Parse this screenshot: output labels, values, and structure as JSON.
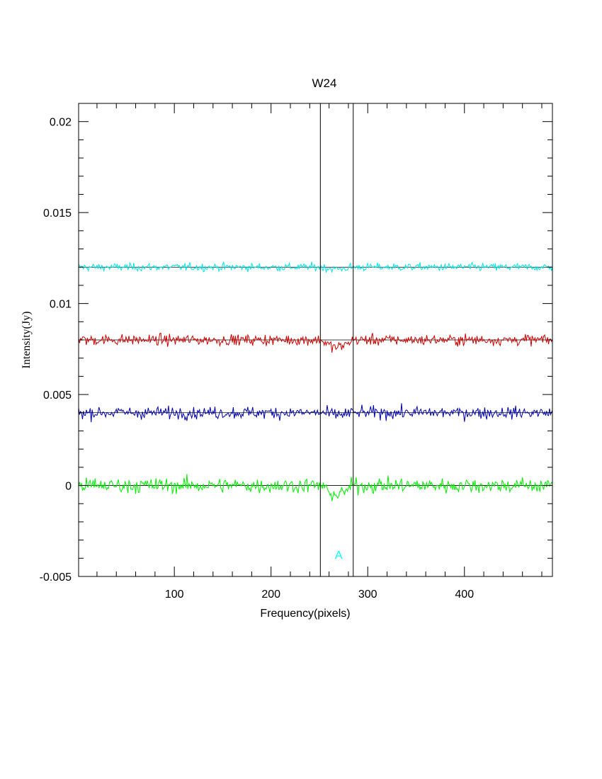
{
  "chart_data": {
    "type": "line",
    "title": "W24",
    "xlabel": "Frequency(pixels)",
    "ylabel": "Intensity(Jy)",
    "xlim": [
      1,
      491
    ],
    "ylim": [
      -0.005,
      0.021
    ],
    "x_ticks": [
      100,
      200,
      300,
      400
    ],
    "x_tick_labels": [
      "100",
      "200",
      "300",
      "400"
    ],
    "y_ticks": [
      -0.005,
      0,
      0.005,
      0.01,
      0.015,
      0.02
    ],
    "y_tick_labels": [
      "-0.005",
      "0",
      "0.005",
      "0.01",
      "0.015",
      "0.02"
    ],
    "grid": false,
    "legend": "none",
    "vertical_lines": [
      251,
      285
    ],
    "annotations": [
      {
        "text": "A",
        "x": 270,
        "y": -0.0038,
        "color": "#00ffff"
      }
    ],
    "series": [
      {
        "color": "#00e6e6",
        "baseline": 0.012,
        "noise": 0.00018,
        "dip": 0.0001
      },
      {
        "color": "#cc0000",
        "baseline": 0.008,
        "noise": 0.00025,
        "dip": 0.0004
      },
      {
        "color": "#0000aa",
        "baseline": 0.004,
        "noise": 0.00028,
        "dip": 0.0001
      },
      {
        "color": "#00ee00",
        "baseline": 0.0,
        "noise": 0.00035,
        "dip": 0.0005
      }
    ]
  }
}
